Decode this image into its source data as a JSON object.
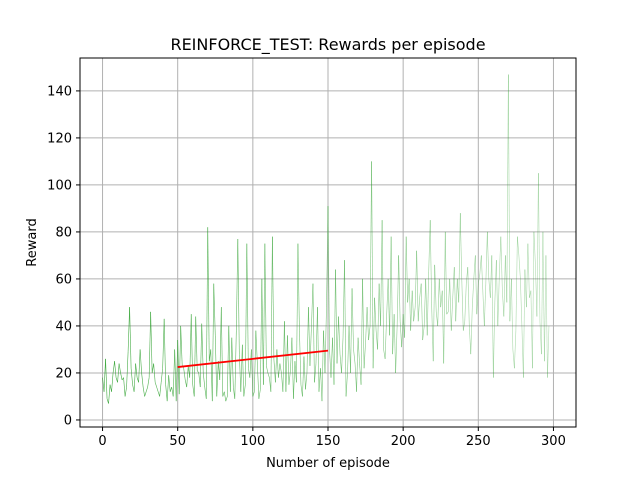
{
  "chart_data": {
    "type": "line",
    "title": "REINFORCE_TEST: Rewards per episode",
    "xlabel": "Number of episode",
    "ylabel": "Reward",
    "xlim": [
      -15,
      315
    ],
    "ylim": [
      -3,
      154
    ],
    "xticks": [
      0,
      50,
      100,
      150,
      200,
      250,
      300
    ],
    "yticks": [
      0,
      20,
      40,
      60,
      80,
      100,
      120,
      140
    ],
    "grid": true,
    "colors": {
      "rewards": "#2ca02c",
      "trend": "#ff0000",
      "grid": "#b0b0b0"
    },
    "series": [
      {
        "id": "rewards",
        "x_start": 0,
        "x_step": 1,
        "values": [
          18,
          12,
          26,
          9,
          7,
          15,
          12,
          20,
          25,
          18,
          16,
          24,
          20,
          17,
          18,
          10,
          14,
          29,
          48,
          22,
          15,
          12,
          24,
          18,
          16,
          30,
          20,
          14,
          10,
          12,
          14,
          18,
          46,
          20,
          24,
          16,
          14,
          12,
          10,
          16,
          22,
          43,
          15,
          8,
          19,
          12,
          14,
          10,
          30,
          8,
          34,
          11,
          40,
          23,
          22,
          17,
          14,
          23,
          18,
          45,
          15,
          10,
          44,
          21,
          20,
          14,
          41,
          20,
          14,
          9,
          82,
          25,
          30,
          8,
          58,
          36,
          10,
          25,
          17,
          48,
          10,
          12,
          8,
          10,
          40,
          12,
          35,
          14,
          9,
          38,
          77,
          28,
          12,
          32,
          10,
          15,
          75,
          22,
          18,
          30,
          10,
          12,
          38,
          24,
          9,
          13,
          60,
          15,
          75,
          23,
          20,
          18,
          12,
          78,
          26,
          16,
          30,
          18,
          24,
          20,
          12,
          42,
          12,
          36,
          15,
          21,
          35,
          9,
          25,
          16,
          75,
          38,
          15,
          10,
          27,
          13,
          20,
          48,
          23,
          40,
          58,
          16,
          24,
          48,
          12,
          22,
          8,
          38,
          20,
          48,
          91,
          30,
          18,
          35,
          15,
          64,
          24,
          44,
          28,
          20,
          35,
          68,
          10,
          20,
          40,
          20,
          56,
          30,
          24,
          12,
          35,
          24,
          15,
          60,
          22,
          33,
          48,
          34,
          40,
          110,
          22,
          52,
          38,
          30,
          58,
          40,
          85,
          30,
          26,
          44,
          60,
          36,
          78,
          28,
          45,
          20,
          40,
          70,
          42,
          31,
          45,
          35,
          78,
          50,
          60,
          38,
          55,
          42,
          48,
          72,
          42,
          52,
          58,
          34,
          40,
          60,
          36,
          63,
          85,
          48,
          25,
          66,
          46,
          40,
          60,
          48,
          55,
          24,
          80,
          45,
          46,
          60,
          38,
          52,
          65,
          42,
          60,
          50,
          88,
          60,
          38,
          42,
          58,
          65,
          40,
          28,
          48,
          60,
          70,
          45,
          58,
          62,
          70,
          55,
          40,
          58,
          80,
          60,
          52,
          70,
          18,
          50,
          68,
          40,
          62,
          78,
          55,
          44,
          70,
          50,
          147,
          42,
          60,
          30,
          22,
          38,
          78,
          70,
          60,
          40,
          18,
          64,
          48,
          75,
          52,
          55,
          22,
          80,
          66,
          44,
          105,
          42,
          28,
          80,
          25,
          70,
          18,
          40
        ]
      },
      {
        "id": "trend",
        "x": [
          50,
          150
        ],
        "y": [
          22.5,
          29.5
        ]
      }
    ]
  }
}
